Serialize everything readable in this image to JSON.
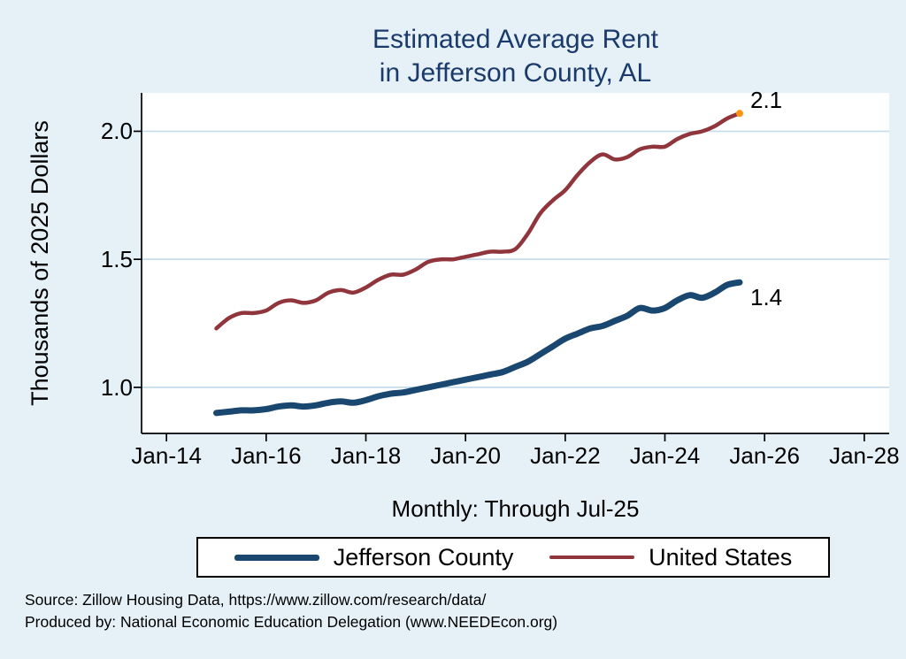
{
  "header": {
    "title_line1": "Estimated Average Rent",
    "title_line2": "in Jefferson County, AL"
  },
  "source": {
    "line1": "Source: Zillow Housing Data, https://www.zillow.com/research/data/",
    "line2": "Produced by: National Economic Education Delegation (www.NEEDEcon.org)"
  },
  "colors": {
    "background": "#e6f1f7",
    "plot_background": "#ffffff",
    "title": "#1a3a6b",
    "gridline": "#c5dcec",
    "axis": "#000000",
    "jefferson_line": "#1a476f",
    "us_line": "#90353b",
    "end_marker": "#ff9214"
  },
  "chart_data": {
    "type": "line",
    "title": "Estimated Average Rent in Jefferson County, AL",
    "xlabel": "Monthly: Through Jul-25",
    "ylabel": "Thousands of 2025 Dollars",
    "grid": "horizontal",
    "legend_position": "bottom",
    "x_unit": "decimal_year",
    "x_range": [
      2013.5,
      2028.5
    ],
    "y_range": [
      0.82,
      2.15
    ],
    "x_tick_values": [
      2014,
      2016,
      2018,
      2020,
      2022,
      2024,
      2026,
      2028
    ],
    "x_tick_labels": [
      "Jan-14",
      "Jan-16",
      "Jan-18",
      "Jan-20",
      "Jan-22",
      "Jan-24",
      "Jan-26",
      "Jan-28"
    ],
    "y_tick_values": [
      1.0,
      1.5,
      2.0
    ],
    "y_tick_labels": [
      "1.0",
      "1.5",
      "2.0"
    ],
    "x": [
      2015.0,
      2015.25,
      2015.5,
      2015.75,
      2016.0,
      2016.25,
      2016.5,
      2016.75,
      2017.0,
      2017.25,
      2017.5,
      2017.75,
      2018.0,
      2018.25,
      2018.5,
      2018.75,
      2019.0,
      2019.25,
      2019.5,
      2019.75,
      2020.0,
      2020.25,
      2020.5,
      2020.75,
      2021.0,
      2021.25,
      2021.5,
      2021.75,
      2022.0,
      2022.25,
      2022.5,
      2022.75,
      2023.0,
      2023.25,
      2023.5,
      2023.75,
      2024.0,
      2024.25,
      2024.5,
      2024.75,
      2025.0,
      2025.25,
      2025.5
    ],
    "series": [
      {
        "name": "Jefferson County",
        "color": "#1a476f",
        "line_width": 7,
        "end_label": "1.4",
        "values": [
          0.9,
          0.905,
          0.91,
          0.91,
          0.915,
          0.925,
          0.93,
          0.925,
          0.93,
          0.94,
          0.945,
          0.94,
          0.95,
          0.965,
          0.975,
          0.98,
          0.99,
          1.0,
          1.01,
          1.02,
          1.03,
          1.04,
          1.05,
          1.06,
          1.08,
          1.1,
          1.13,
          1.16,
          1.19,
          1.21,
          1.23,
          1.24,
          1.26,
          1.28,
          1.31,
          1.3,
          1.31,
          1.34,
          1.36,
          1.35,
          1.37,
          1.4,
          1.41
        ]
      },
      {
        "name": "United States",
        "color": "#90353b",
        "line_width": 4.5,
        "end_label": "2.1",
        "end_marker_color": "#ff9214",
        "values": [
          1.23,
          1.27,
          1.29,
          1.29,
          1.3,
          1.33,
          1.34,
          1.33,
          1.34,
          1.37,
          1.38,
          1.37,
          1.39,
          1.42,
          1.44,
          1.44,
          1.46,
          1.49,
          1.5,
          1.5,
          1.51,
          1.52,
          1.53,
          1.53,
          1.54,
          1.6,
          1.68,
          1.73,
          1.77,
          1.83,
          1.88,
          1.91,
          1.89,
          1.9,
          1.93,
          1.94,
          1.94,
          1.97,
          1.99,
          2.0,
          2.02,
          2.05,
          2.07
        ]
      }
    ]
  }
}
